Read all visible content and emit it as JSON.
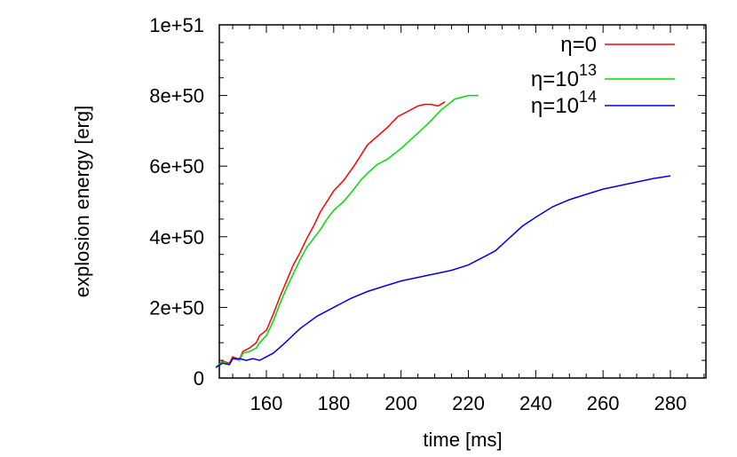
{
  "chart_data": {
    "type": "line",
    "title": "",
    "xlabel": "time [ms]",
    "ylabel": "explosion energy [erg]",
    "xlim": [
      145,
      290
    ],
    "ylim": [
      0,
      1e+51
    ],
    "xticks": [
      "160",
      "180",
      "200",
      "220",
      "240",
      "260",
      "280"
    ],
    "yticks": [
      "0",
      "2e+50",
      "4e+50",
      "6e+50",
      "8e+50",
      "1e+51"
    ],
    "grid": false,
    "legend_position": "top-right",
    "series": [
      {
        "name": "η=0",
        "label_base": "η=0",
        "label_sup": "",
        "color": "#ff0000",
        "x": [
          145,
          147,
          149,
          150,
          152,
          153,
          155,
          157,
          158,
          160,
          162,
          164,
          166,
          168,
          170,
          172,
          174,
          176,
          178,
          180,
          183,
          186,
          188,
          190,
          193,
          196,
          199,
          202,
          205,
          207,
          209,
          211,
          213
        ],
        "y": [
          0.3,
          0.48,
          0.42,
          0.6,
          0.52,
          0.75,
          0.85,
          1.0,
          1.2,
          1.35,
          1.8,
          2.3,
          2.75,
          3.2,
          3.55,
          3.95,
          4.3,
          4.7,
          5.0,
          5.3,
          5.6,
          6.0,
          6.3,
          6.6,
          6.85,
          7.1,
          7.4,
          7.55,
          7.7,
          7.75,
          7.75,
          7.7,
          7.82
        ]
      },
      {
        "name": "η=10^13",
        "label_base": "η=10",
        "label_sup": "13",
        "color": "#00dd00",
        "x": [
          145,
          147,
          149,
          150,
          152,
          153,
          155,
          157,
          158,
          160,
          162,
          164,
          166,
          168,
          170,
          172,
          174,
          176,
          178,
          180,
          183,
          186,
          188,
          190,
          193,
          196,
          200,
          204,
          208,
          212,
          216,
          220,
          223
        ],
        "y": [
          0.3,
          0.46,
          0.4,
          0.55,
          0.5,
          0.7,
          0.75,
          0.85,
          1.0,
          1.2,
          1.6,
          2.1,
          2.55,
          2.95,
          3.35,
          3.7,
          3.95,
          4.2,
          4.5,
          4.75,
          5.0,
          5.35,
          5.6,
          5.8,
          6.05,
          6.2,
          6.5,
          6.85,
          7.2,
          7.6,
          7.9,
          8.0,
          8.0
        ]
      },
      {
        "name": "η=10^14",
        "label_base": "η=10",
        "label_sup": "14",
        "color": "#0000ee",
        "x": [
          145,
          147,
          149,
          150,
          152,
          154,
          156,
          158,
          160,
          162,
          165,
          170,
          175,
          180,
          185,
          190,
          195,
          200,
          205,
          210,
          215,
          220,
          225,
          228,
          232,
          236,
          240,
          245,
          250,
          255,
          260,
          265,
          270,
          275,
          280
        ],
        "y": [
          0.3,
          0.42,
          0.38,
          0.55,
          0.55,
          0.5,
          0.55,
          0.5,
          0.6,
          0.7,
          0.95,
          1.4,
          1.75,
          2.0,
          2.25,
          2.45,
          2.6,
          2.75,
          2.85,
          2.95,
          3.05,
          3.2,
          3.45,
          3.6,
          3.95,
          4.3,
          4.55,
          4.85,
          5.05,
          5.2,
          5.35,
          5.45,
          5.55,
          5.65,
          5.72
        ]
      }
    ]
  }
}
